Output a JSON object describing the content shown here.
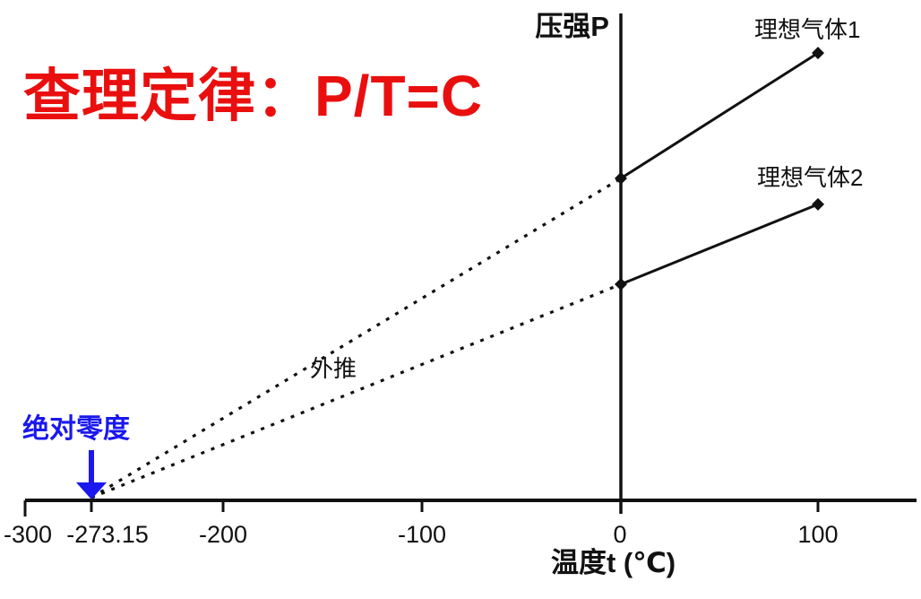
{
  "colors": {
    "title": "#ea0f0f",
    "ink": "#111111"
  },
  "chart_data": {
    "type": "line",
    "title": "查理定律：P/T=C",
    "xlabel": "温度t (℃)",
    "ylabel": "压强P",
    "xlim": [
      -300,
      150
    ],
    "x_ticks": [
      -300,
      -273.15,
      -200,
      -100,
      0,
      100
    ],
    "x_tick_labels": [
      "-300",
      "-273.15",
      "-200",
      "-100",
      "0",
      "100"
    ],
    "pressure_units": "arbitrary (理想气体2 at 0°C = 1)",
    "grid": false,
    "series": [
      {
        "name": "理想气体1",
        "marker": "diamond",
        "line": "solid",
        "points": [
          [
            0,
            1.49
          ],
          [
            100,
            2.07
          ]
        ],
        "extrapolation": {
          "style": "dotted",
          "points": [
            [
              -273.15,
              0
            ],
            [
              0,
              1.49
            ]
          ]
        }
      },
      {
        "name": "理想气体2",
        "marker": "diamond",
        "line": "solid",
        "points": [
          [
            0,
            1.0
          ],
          [
            100,
            1.37
          ]
        ],
        "extrapolation": {
          "style": "dotted",
          "points": [
            [
              -273.15,
              0
            ],
            [
              0,
              1.0
            ]
          ]
        }
      }
    ],
    "annotations": [
      {
        "text": "绝对零度",
        "color": "#1a18ee",
        "arrow": "down",
        "arrow_to": {
          "x": -273.15,
          "y": 0
        }
      },
      {
        "text": "外推",
        "x": -155,
        "y": 0.6
      }
    ]
  }
}
